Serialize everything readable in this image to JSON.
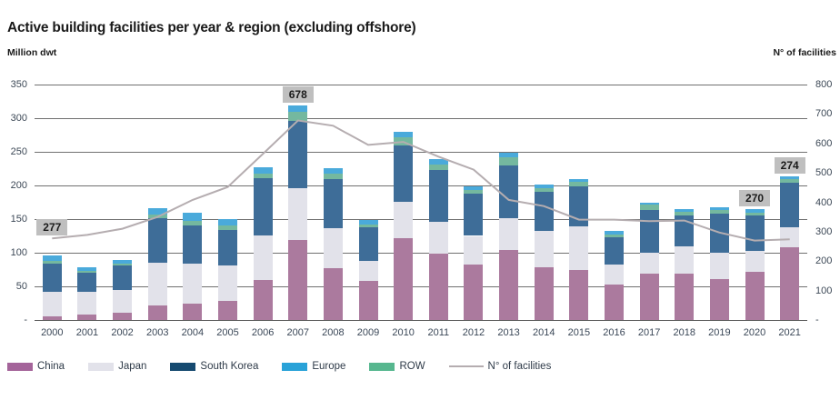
{
  "header": {
    "title": "Active building facilities per year & region (excluding offshore)"
  },
  "axes": {
    "left_unit": "Million dwt",
    "right_unit": "N° of facilities",
    "left_ticks": [
      "350",
      "300",
      "250",
      "200",
      "150",
      "100",
      "50",
      "-"
    ],
    "right_ticks": [
      "800",
      "700",
      "600",
      "500",
      "400",
      "300",
      "200",
      "100",
      "-"
    ]
  },
  "colors": {
    "gridline": "#707070",
    "axis_text": "#3c4856",
    "annotation_bg": "#bfbfbf",
    "line": "#b5adb0"
  },
  "chart_data": {
    "type": "bar",
    "subtype": "stacked-bars-with-line",
    "title": "Active building facilities per year & region (excluding offshore)",
    "ylabel_left": "Million dwt",
    "ylabel_right": "N° of facilities",
    "ylim_left": [
      0,
      350
    ],
    "ylim_right": [
      0,
      800
    ],
    "grid": true,
    "legend_position": "bottom",
    "categories": [
      "2000",
      "2001",
      "2002",
      "2003",
      "2004",
      "2005",
      "2006",
      "2007",
      "2008",
      "2009",
      "2010",
      "2011",
      "2012",
      "2013",
      "2014",
      "2015",
      "2016",
      "2017",
      "2018",
      "2019",
      "2020",
      "2021"
    ],
    "series": [
      {
        "name": "China",
        "color": "#ab7a9e",
        "legend_color": "#a4649a",
        "values": [
          5,
          8,
          11,
          21,
          24,
          28,
          59,
          119,
          77,
          58,
          121,
          98,
          83,
          104,
          79,
          74,
          53,
          69,
          69,
          61,
          71,
          108
        ]
      },
      {
        "name": "Japan",
        "color": "#e2e2ea",
        "legend_color": "#e2e2ea",
        "values": [
          37,
          34,
          33,
          64,
          60,
          53,
          67,
          77,
          60,
          30,
          55,
          48,
          42,
          47,
          54,
          65,
          29,
          31,
          40,
          39,
          32,
          30
        ]
      },
      {
        "name": "South Korea",
        "color": "#3e6d98",
        "legend_color": "#164a70",
        "values": [
          42,
          28,
          37,
          66,
          57,
          53,
          85,
          100,
          72,
          50,
          84,
          77,
          63,
          79,
          57,
          60,
          41,
          63,
          47,
          58,
          52,
          66
        ]
      },
      {
        "name": "Europe",
        "color": "#4aaadb",
        "legend_color": "#29a2d8",
        "values": [
          8,
          5,
          5,
          9,
          12,
          10,
          10,
          10,
          9,
          6,
          9,
          8,
          6,
          6,
          6,
          5,
          5,
          4,
          4,
          4,
          5,
          5
        ]
      },
      {
        "name": "ROW",
        "color": "#74b89f",
        "legend_color": "#57b78f",
        "values": [
          4,
          3,
          3,
          6,
          6,
          6,
          6,
          13,
          8,
          4,
          11,
          8,
          5,
          12,
          6,
          6,
          4,
          8,
          5,
          5,
          5,
          5
        ]
      }
    ],
    "stack_order": [
      "China",
      "Japan",
      "South Korea",
      "ROW",
      "Europe"
    ],
    "line_series": {
      "name": "N° of facilities",
      "color": "#b5adb0",
      "axis": "right",
      "values": [
        277,
        289,
        310,
        350,
        408,
        452,
        564,
        678,
        660,
        595,
        605,
        555,
        511,
        408,
        387,
        341,
        341,
        336,
        338,
        297,
        270,
        274
      ]
    },
    "annotations": [
      {
        "category": "2000",
        "label": "277"
      },
      {
        "category": "2007",
        "label": "678"
      },
      {
        "category": "2020",
        "label": "270"
      },
      {
        "category": "2021",
        "label": "274"
      }
    ]
  }
}
